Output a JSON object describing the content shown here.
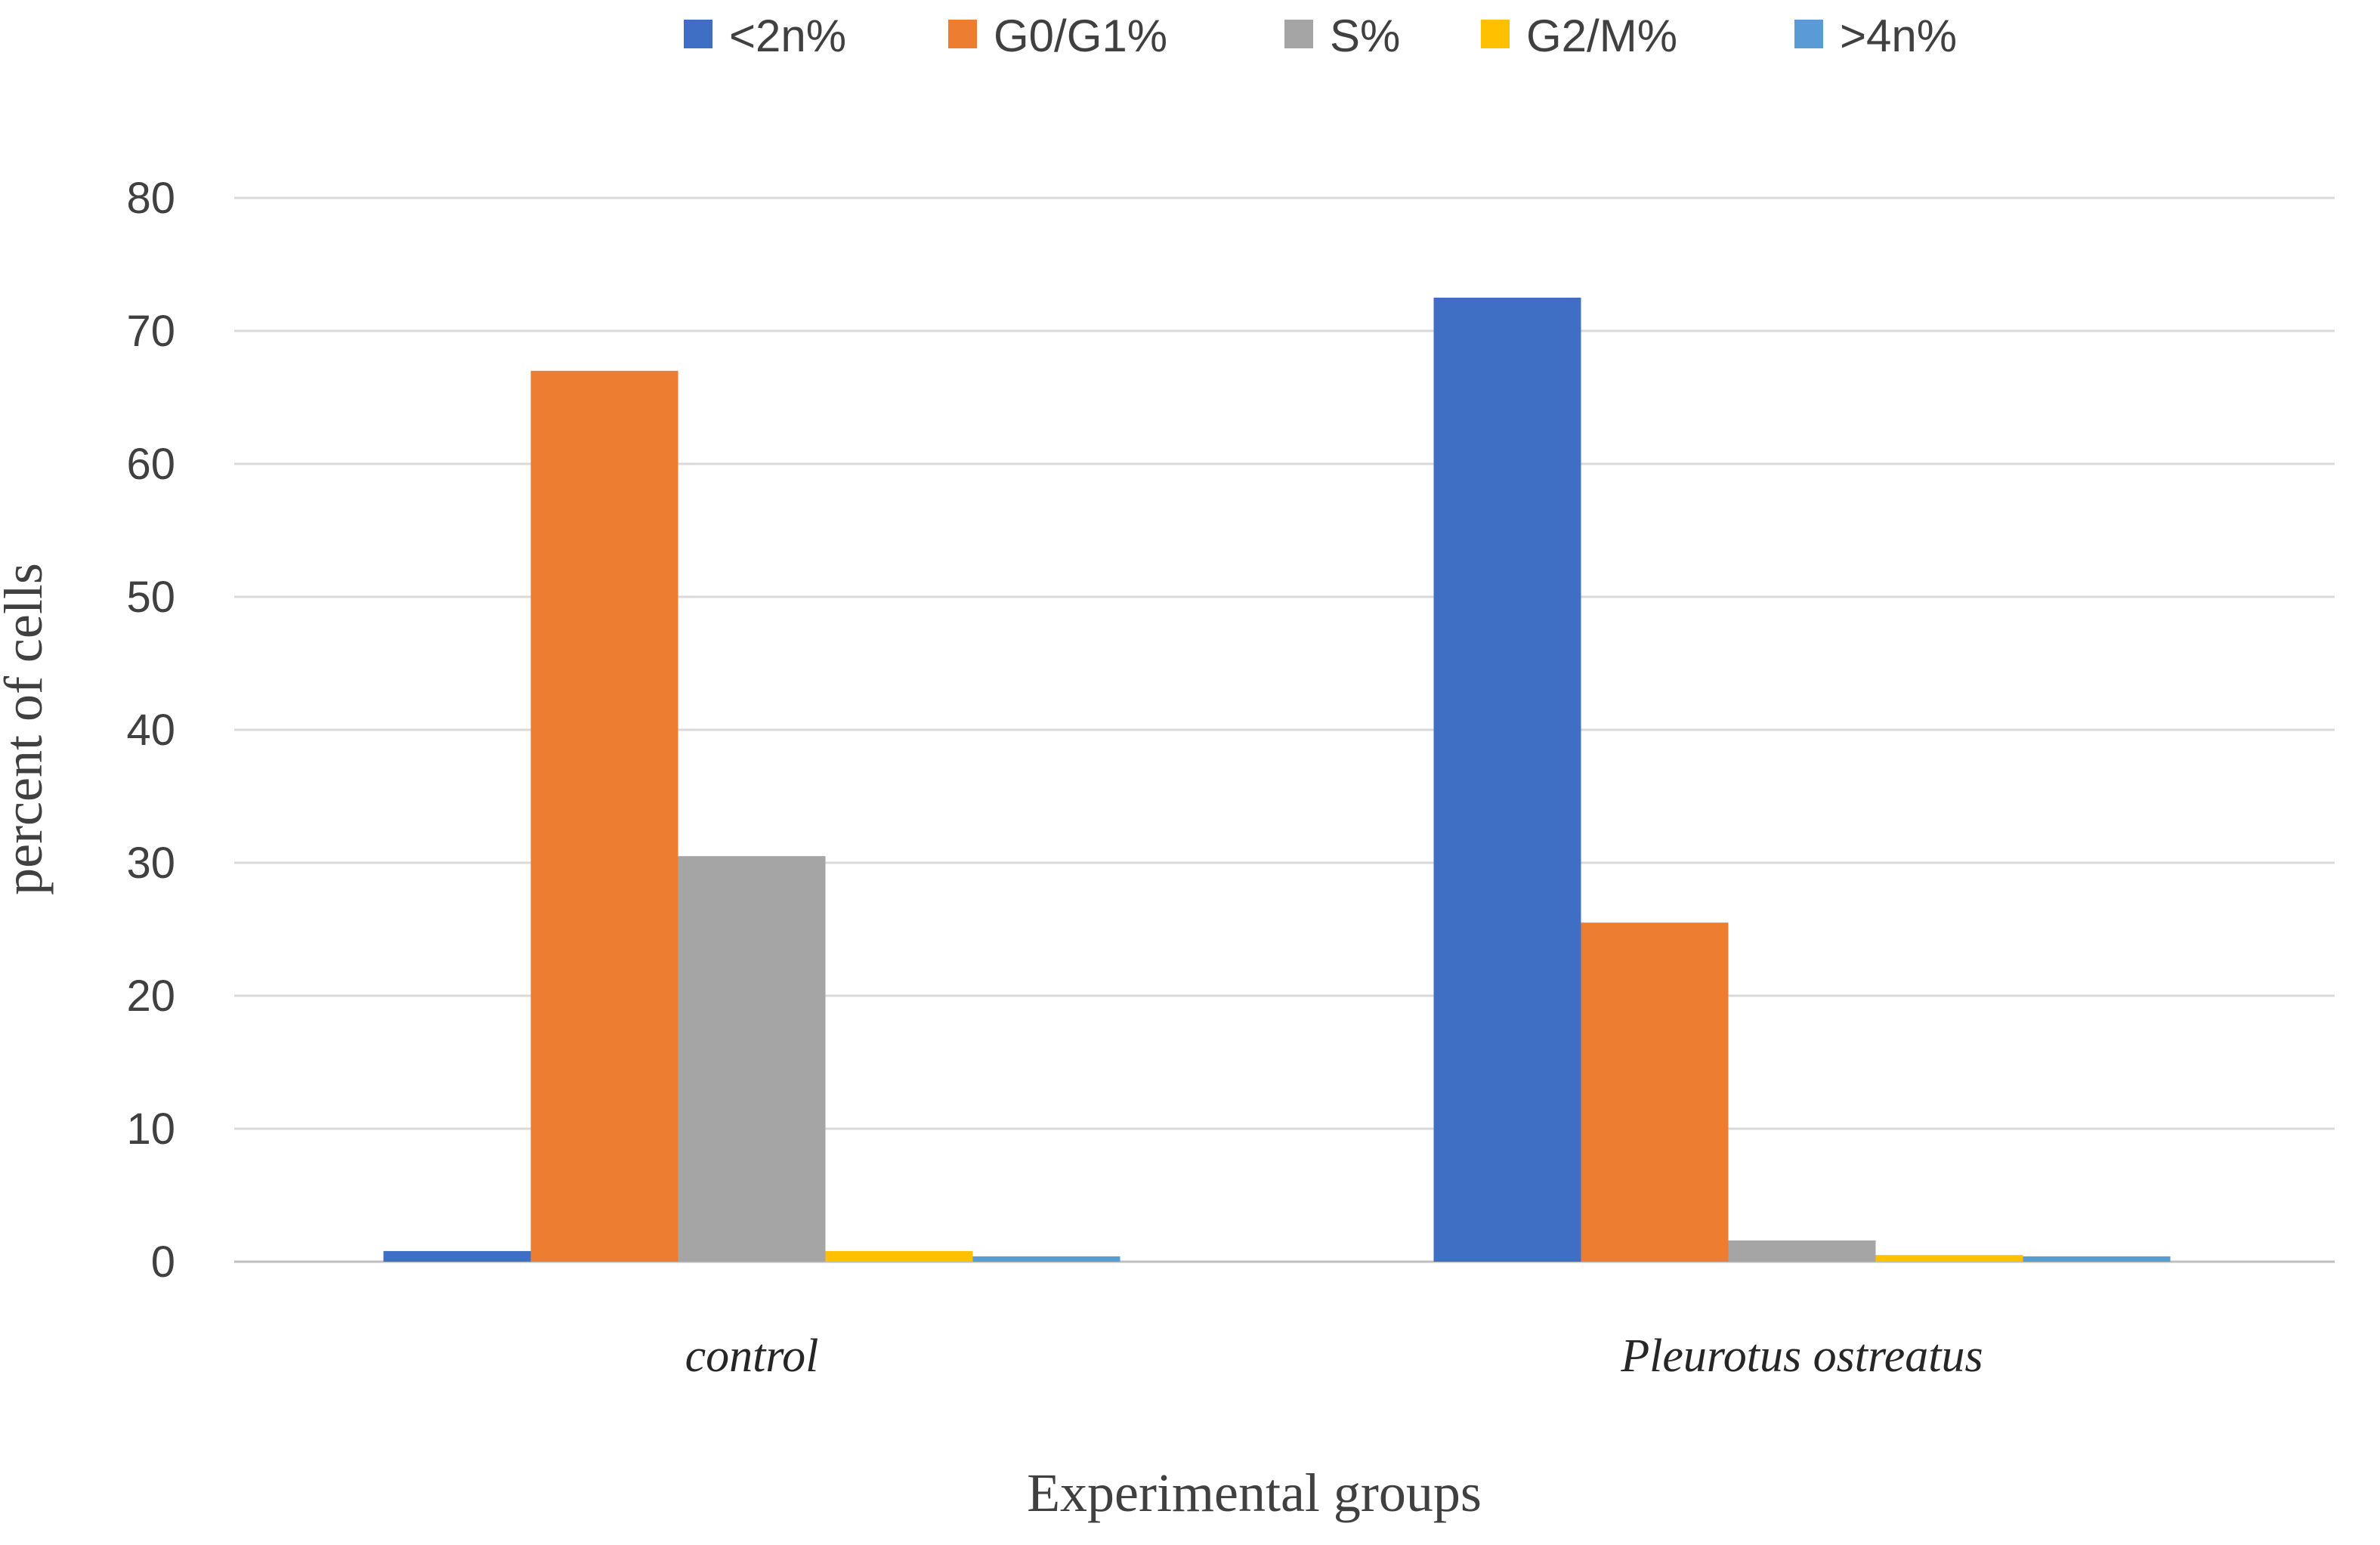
{
  "chart_data": {
    "type": "bar",
    "title": "",
    "xlabel": "Experimental groups",
    "ylabel": "percent of cells",
    "ylim": [
      0,
      80
    ],
    "yticks": [
      0,
      10,
      20,
      30,
      40,
      50,
      60,
      70,
      80
    ],
    "grid": true,
    "legend_position": "top",
    "categories": [
      "control",
      "Pleurotus ostreatus"
    ],
    "series": [
      {
        "name": "<2n%",
        "color": "#3f6fc4",
        "values": [
          0.8,
          72.5
        ]
      },
      {
        "name": "G0/G1%",
        "color": "#ed7d31",
        "values": [
          67.0,
          25.5
        ]
      },
      {
        "name": "S%",
        "color": "#a5a5a5",
        "values": [
          30.5,
          1.6
        ]
      },
      {
        "name": "G2/M%",
        "color": "#ffc000",
        "values": [
          0.8,
          0.5
        ]
      },
      {
        "name": ">4n%",
        "color": "#5b9bd5",
        "values": [
          0.4,
          0.4
        ]
      }
    ]
  }
}
